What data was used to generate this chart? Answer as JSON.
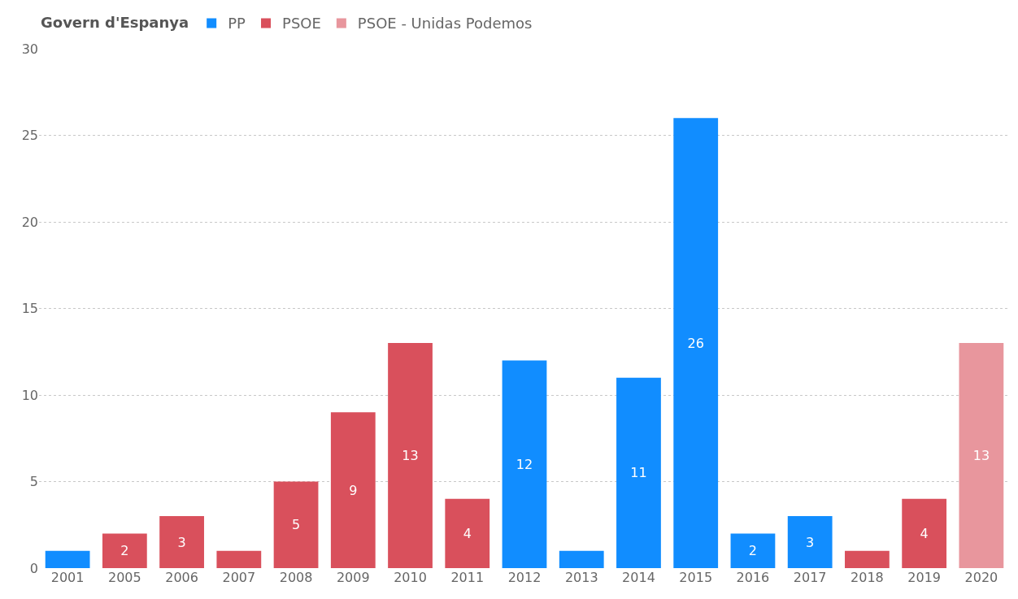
{
  "chart_data": {
    "type": "bar",
    "legend_title": "Govern d'Espanya",
    "categories": [
      "2001",
      "2005",
      "2006",
      "2007",
      "2008",
      "2009",
      "2010",
      "2011",
      "2012",
      "2013",
      "2014",
      "2015",
      "2016",
      "2017",
      "2018",
      "2019",
      "2020"
    ],
    "series": [
      {
        "name": "PP",
        "color": "#118dff",
        "values": [
          1,
          null,
          null,
          null,
          null,
          null,
          null,
          null,
          12,
          1,
          11,
          26,
          2,
          3,
          null,
          null,
          null
        ],
        "value_labels": [
          null,
          null,
          null,
          null,
          null,
          null,
          null,
          null,
          "12",
          null,
          "11",
          "26",
          "2",
          "3",
          null,
          null,
          null
        ]
      },
      {
        "name": "PSOE",
        "color": "#d9505c",
        "values": [
          null,
          2,
          3,
          1,
          5,
          9,
          13,
          4,
          null,
          null,
          null,
          null,
          null,
          null,
          1,
          4,
          null
        ],
        "value_labels": [
          null,
          "2",
          "3",
          null,
          "5",
          "9",
          "13",
          "4",
          null,
          null,
          null,
          null,
          null,
          null,
          null,
          "4",
          null
        ]
      },
      {
        "name": "PSOE - Unidas Podemos",
        "color": "#e8969d",
        "values": [
          null,
          null,
          null,
          null,
          null,
          null,
          null,
          null,
          null,
          null,
          null,
          null,
          null,
          null,
          null,
          null,
          13
        ],
        "value_labels": [
          null,
          null,
          null,
          null,
          null,
          null,
          null,
          null,
          null,
          null,
          null,
          null,
          null,
          null,
          null,
          null,
          "13"
        ]
      }
    ],
    "ylim": [
      0,
      30
    ],
    "yticks": [
      0,
      5,
      10,
      15,
      20,
      25,
      30
    ],
    "grid": "y",
    "legend": "top left"
  }
}
